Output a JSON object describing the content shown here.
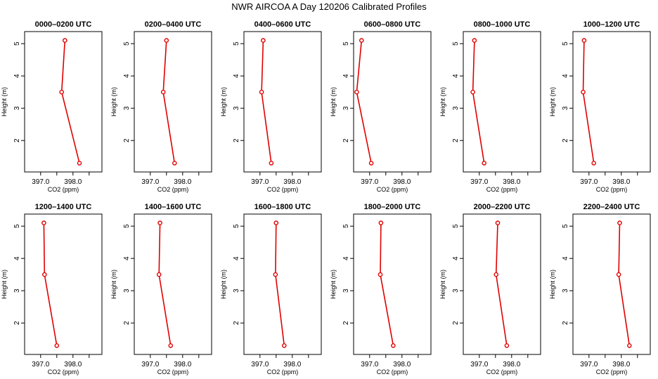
{
  "title": "NWR AIRCOA A  Day 120206  Calibrated Profiles",
  "chart_data": {
    "type": "line",
    "xlabel": "CO2 (ppm)",
    "ylabel": "Height (m)",
    "xlim": [
      396.6,
      398.8
    ],
    "ylim": [
      1.2,
      5.2
    ],
    "xticks": [
      397.0,
      397.5,
      398.0,
      398.5
    ],
    "xtick_labels": [
      "397.0",
      "",
      "398.0",
      ""
    ],
    "yticks": [
      2,
      3,
      4,
      5
    ],
    "ytick_labels": [
      "2",
      "3",
      "4",
      "5"
    ],
    "heights": [
      5.1,
      3.5,
      1.3
    ],
    "color": "#e00000",
    "panels": [
      {
        "title": "0000–0200 UTC",
        "co2": [
          397.75,
          397.65,
          398.2
        ]
      },
      {
        "title": "0200–0400 UTC",
        "co2": [
          397.5,
          397.4,
          397.75
        ]
      },
      {
        "title": "0400–0600 UTC",
        "co2": [
          397.1,
          397.05,
          397.35
        ]
      },
      {
        "title": "0600–0800 UTC",
        "co2": [
          396.75,
          396.6,
          397.05
        ]
      },
      {
        "title": "0800–1000 UTC",
        "co2": [
          396.85,
          396.8,
          397.15
        ]
      },
      {
        "title": "1000–1200 UTC",
        "co2": [
          396.85,
          396.82,
          397.15
        ]
      },
      {
        "title": "1200–1400 UTC",
        "co2": [
          397.1,
          397.12,
          397.5
        ]
      },
      {
        "title": "1400–1600 UTC",
        "co2": [
          397.3,
          397.27,
          397.63
        ]
      },
      {
        "title": "1600–1800 UTC",
        "co2": [
          397.5,
          397.48,
          397.75
        ]
      },
      {
        "title": "1800–2000 UTC",
        "co2": [
          397.35,
          397.33,
          397.73
        ]
      },
      {
        "title": "2000–2200 UTC",
        "co2": [
          397.57,
          397.52,
          397.85
        ]
      },
      {
        "title": "2200–2400 UTC",
        "co2": [
          397.95,
          397.92,
          398.25
        ]
      }
    ]
  }
}
